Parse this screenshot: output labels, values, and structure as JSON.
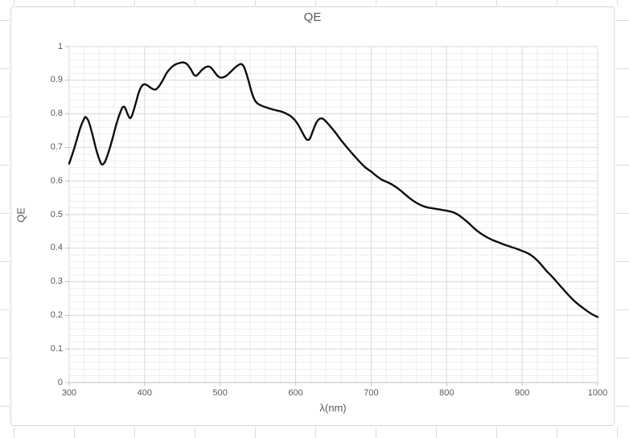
{
  "chart_data": {
    "type": "line",
    "title": "QE",
    "xlabel": "λ(nm)",
    "ylabel": "QE",
    "xlim": [
      300,
      1000
    ],
    "ylim": [
      0,
      1
    ],
    "x_major_step": 100,
    "x_minor_step": 20,
    "y_major_step": 0.1,
    "y_minor_step": 0.02,
    "x_tick_labels": [
      "300",
      "400",
      "500",
      "600",
      "700",
      "800",
      "900",
      "1000"
    ],
    "y_tick_labels": [
      "0",
      "0.1",
      "0.2",
      "0.3",
      "0.4",
      "0.5",
      "0.6",
      "0.7",
      "0.8",
      "0.9",
      "1"
    ],
    "grid": "major-and-minor",
    "legend": "none",
    "series": [
      {
        "name": "QE",
        "color": "#0E0E0E",
        "points": [
          [
            300,
            0.652
          ],
          [
            305,
            0.685
          ],
          [
            310,
            0.722
          ],
          [
            315,
            0.76
          ],
          [
            320,
            0.786
          ],
          [
            322,
            0.79
          ],
          [
            326,
            0.776
          ],
          [
            331,
            0.737
          ],
          [
            336,
            0.692
          ],
          [
            341,
            0.658
          ],
          [
            344,
            0.649
          ],
          [
            348,
            0.66
          ],
          [
            353,
            0.692
          ],
          [
            358,
            0.731
          ],
          [
            363,
            0.773
          ],
          [
            368,
            0.806
          ],
          [
            371,
            0.82
          ],
          [
            374,
            0.818
          ],
          [
            378,
            0.796
          ],
          [
            381,
            0.787
          ],
          [
            384,
            0.8
          ],
          [
            388,
            0.83
          ],
          [
            392,
            0.862
          ],
          [
            396,
            0.882
          ],
          [
            400,
            0.888
          ],
          [
            404,
            0.884
          ],
          [
            409,
            0.876
          ],
          [
            414,
            0.872
          ],
          [
            419,
            0.882
          ],
          [
            424,
            0.9
          ],
          [
            429,
            0.921
          ],
          [
            434,
            0.935
          ],
          [
            440,
            0.946
          ],
          [
            446,
            0.951
          ],
          [
            451,
            0.953
          ],
          [
            456,
            0.948
          ],
          [
            461,
            0.933
          ],
          [
            465,
            0.917
          ],
          [
            468,
            0.913
          ],
          [
            472,
            0.921
          ],
          [
            477,
            0.933
          ],
          [
            482,
            0.94
          ],
          [
            486,
            0.94
          ],
          [
            490,
            0.932
          ],
          [
            495,
            0.917
          ],
          [
            499,
            0.909
          ],
          [
            503,
            0.908
          ],
          [
            508,
            0.913
          ],
          [
            513,
            0.923
          ],
          [
            519,
            0.936
          ],
          [
            524,
            0.945
          ],
          [
            528,
            0.948
          ],
          [
            531,
            0.942
          ],
          [
            534,
            0.925
          ],
          [
            538,
            0.895
          ],
          [
            542,
            0.862
          ],
          [
            546,
            0.84
          ],
          [
            550,
            0.83
          ],
          [
            555,
            0.824
          ],
          [
            561,
            0.819
          ],
          [
            568,
            0.814
          ],
          [
            575,
            0.81
          ],
          [
            582,
            0.806
          ],
          [
            589,
            0.799
          ],
          [
            594,
            0.792
          ],
          [
            599,
            0.781
          ],
          [
            604,
            0.765
          ],
          [
            609,
            0.744
          ],
          [
            613,
            0.728
          ],
          [
            616,
            0.722
          ],
          [
            619,
            0.727
          ],
          [
            623,
            0.75
          ],
          [
            627,
            0.772
          ],
          [
            631,
            0.784
          ],
          [
            635,
            0.786
          ],
          [
            639,
            0.78
          ],
          [
            645,
            0.765
          ],
          [
            652,
            0.746
          ],
          [
            660,
            0.722
          ],
          [
            668,
            0.7
          ],
          [
            676,
            0.679
          ],
          [
            684,
            0.659
          ],
          [
            692,
            0.641
          ],
          [
            700,
            0.628
          ],
          [
            707,
            0.615
          ],
          [
            714,
            0.604
          ],
          [
            721,
            0.597
          ],
          [
            728,
            0.589
          ],
          [
            736,
            0.577
          ],
          [
            744,
            0.562
          ],
          [
            752,
            0.547
          ],
          [
            760,
            0.535
          ],
          [
            768,
            0.526
          ],
          [
            775,
            0.521
          ],
          [
            783,
            0.518
          ],
          [
            791,
            0.515
          ],
          [
            799,
            0.512
          ],
          [
            807,
            0.508
          ],
          [
            814,
            0.501
          ],
          [
            821,
            0.49
          ],
          [
            829,
            0.475
          ],
          [
            837,
            0.458
          ],
          [
            845,
            0.444
          ],
          [
            853,
            0.433
          ],
          [
            861,
            0.424
          ],
          [
            869,
            0.417
          ],
          [
            877,
            0.41
          ],
          [
            885,
            0.404
          ],
          [
            893,
            0.398
          ],
          [
            901,
            0.391
          ],
          [
            909,
            0.383
          ],
          [
            916,
            0.372
          ],
          [
            924,
            0.354
          ],
          [
            932,
            0.333
          ],
          [
            941,
            0.312
          ],
          [
            950,
            0.289
          ],
          [
            960,
            0.264
          ],
          [
            970,
            0.241
          ],
          [
            980,
            0.223
          ],
          [
            990,
            0.207
          ],
          [
            1000,
            0.195
          ]
        ]
      }
    ]
  },
  "colors": {
    "curve": "#0E0E0E",
    "text": "#595959",
    "grid_minor": "#EDEDED",
    "grid_major": "#D8D8D8",
    "axis_line": "#BFBFBF",
    "chart_border": "#D9D9D9",
    "background": "#FFFFFF"
  }
}
